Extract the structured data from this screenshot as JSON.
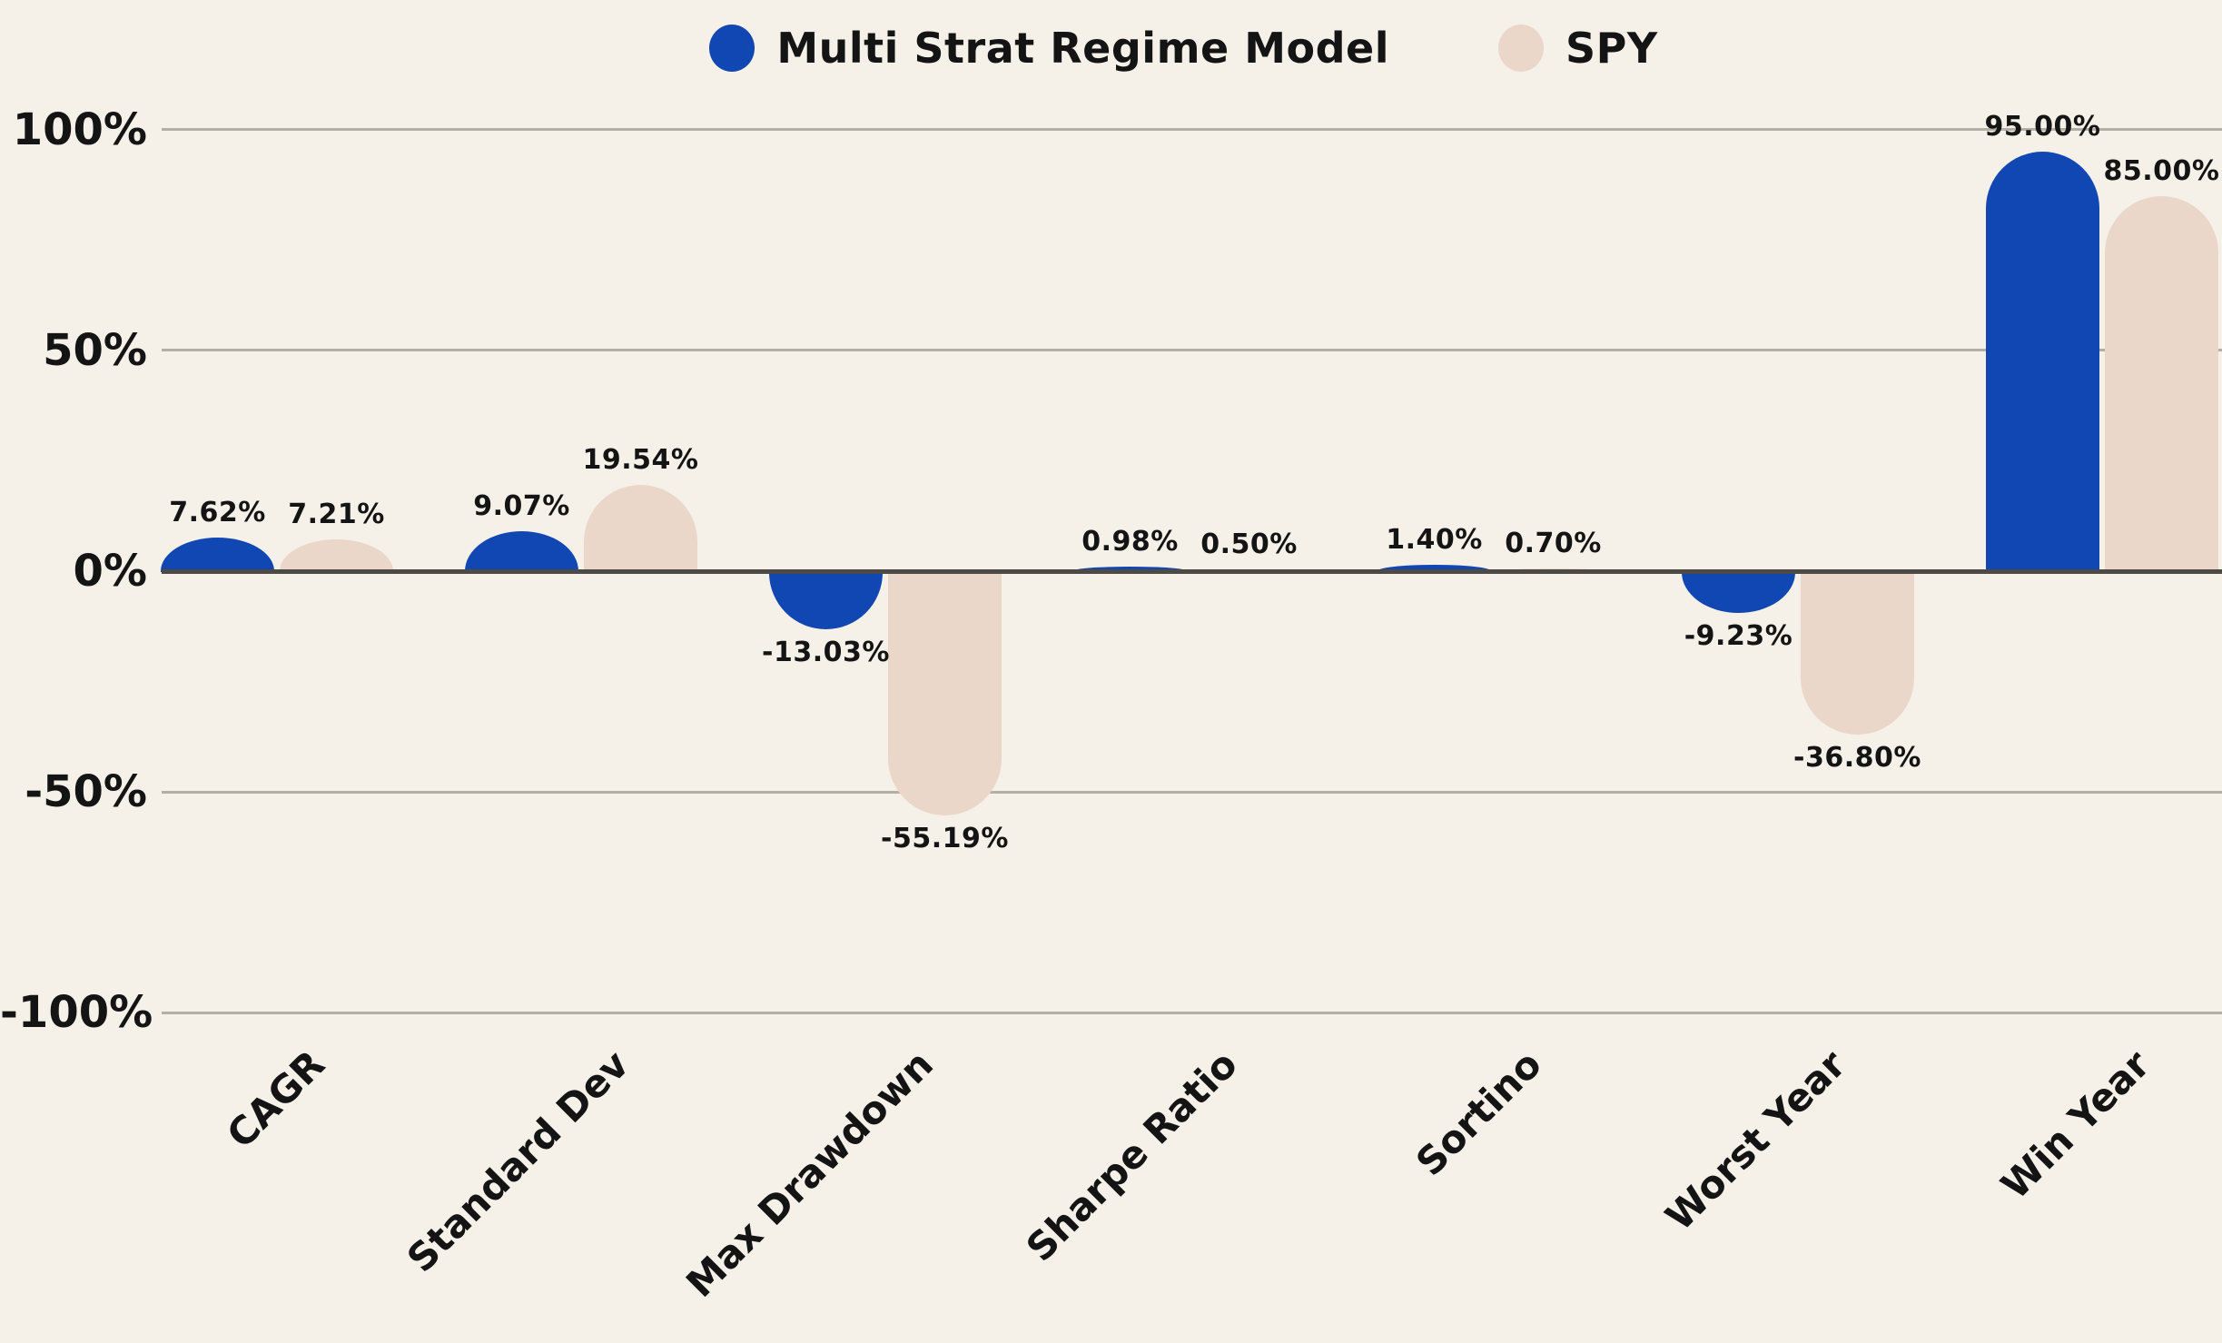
{
  "colors": {
    "background": "#f5f1e9",
    "primary_blue": "#1147b2",
    "secondary_tan": "#ebd7c9",
    "gridline": "#b3afa7",
    "zero_line": "#4d4a45",
    "text": "#141414"
  },
  "legend": {
    "items": [
      {
        "label": "Multi Strat Regime Model",
        "color": "#1147b2"
      },
      {
        "label": "SPY",
        "color": "#ebd7c9"
      }
    ]
  },
  "chart_data": {
    "type": "bar",
    "title": "",
    "categories": [
      "CAGR",
      "Standard Dev",
      "Max Drawdown",
      "Sharpe Ratio",
      "Sortino",
      "Worst Year",
      "Win Year"
    ],
    "series": [
      {
        "name": "Multi Strat Regime Model",
        "color": "#1147b2",
        "values": [
          7.62,
          9.07,
          -13.03,
          0.98,
          1.4,
          -9.23,
          95.0
        ],
        "labels": [
          "7.62%",
          "9.07%",
          "-13.03%",
          "0.98%",
          "1.40%",
          "-9.23%",
          "95.00%"
        ]
      },
      {
        "name": "SPY",
        "color": "#ebd7c9",
        "values": [
          7.21,
          19.54,
          -55.19,
          0.5,
          0.7,
          -36.8,
          85.0
        ],
        "labels": [
          "7.21%",
          "19.54%",
          "-55.19%",
          "0.50%",
          "0.70%",
          "-36.80%",
          "85.00%"
        ]
      }
    ],
    "y_axis": {
      "ticks": [
        100,
        50,
        0,
        -50,
        -100
      ],
      "tick_labels": [
        "100%",
        "50%",
        "0%",
        "-50%",
        "-100%"
      ],
      "ylim": [
        -100,
        100
      ],
      "unit": "%"
    },
    "grid": true,
    "legend_position": "top-center"
  }
}
